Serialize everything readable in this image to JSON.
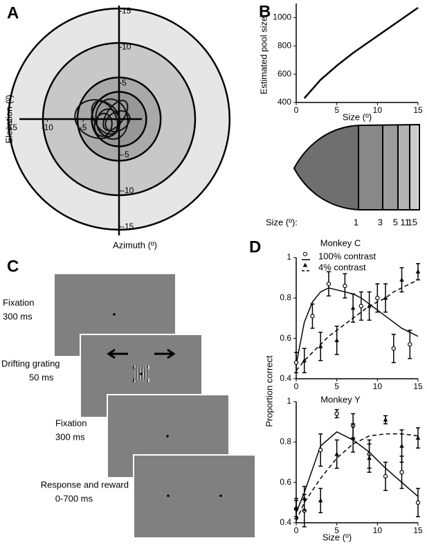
{
  "panels": [
    "A",
    "B",
    "C",
    "D"
  ],
  "chart_data": [
    {
      "type": "field",
      "xlabel": "Azimuth (º)",
      "ylabel": "Elevation (º)",
      "xlim": [
        -16,
        16
      ],
      "ylim": [
        -16,
        16
      ],
      "xticks": [
        -15,
        -10,
        -5
      ],
      "yticks": [
        -15,
        -10,
        -5,
        5,
        10,
        15
      ],
      "rings": [
        15.4,
        10.6,
        5.8,
        3.8
      ],
      "ring_colors": [
        "#e6e6e6",
        "#c8c8c8",
        "#a9a9a9",
        "#979797"
      ]
    },
    {
      "type": "line",
      "xlabel": "Size (º)",
      "ylabel": "Estimated pool size",
      "xlim": [
        0,
        15
      ],
      "ylim": [
        400,
        1100
      ],
      "xticks": [
        0,
        5,
        10,
        15
      ],
      "yticks": [
        400,
        600,
        800,
        1000
      ],
      "x": [
        1,
        3,
        5,
        7,
        9,
        11,
        13,
        15
      ],
      "values": [
        430,
        560,
        660,
        750,
        830,
        910,
        990,
        1070
      ],
      "color": "#000000"
    },
    {
      "type": "pool",
      "label": "Size (º):",
      "sizes": [
        1,
        3,
        5,
        11,
        15
      ],
      "band_colors": [
        "#6f6f6f",
        "#898989",
        "#9c9c9c",
        "#b3b3b3",
        "#cbcbcb"
      ]
    },
    {
      "type": "scatter",
      "title": "Monkey C",
      "ylabel": "Proportion correct",
      "xlim": [
        0,
        15
      ],
      "ylim": [
        0.4,
        1
      ],
      "xticks": [
        0,
        5,
        10,
        15
      ],
      "yticks": [
        0.4,
        0.6,
        0.8,
        1
      ],
      "series": [
        {
          "name": "100% contrast",
          "marker": "circle",
          "dash": false,
          "x": [
            0,
            2,
            4,
            6,
            8,
            10,
            12,
            14
          ],
          "values": [
            0.48,
            0.71,
            0.87,
            0.86,
            0.76,
            0.8,
            0.55,
            0.57
          ],
          "errors": [
            0.05,
            0.06,
            0.06,
            0.06,
            0.07,
            0.07,
            0.07,
            0.07
          ],
          "fit_x": [
            0,
            1,
            2,
            3,
            4,
            5,
            6,
            7,
            8,
            9,
            10,
            11,
            12,
            13,
            14,
            15
          ],
          "fit": [
            0.47,
            0.68,
            0.78,
            0.83,
            0.85,
            0.84,
            0.83,
            0.82,
            0.8,
            0.77,
            0.74,
            0.71,
            0.68,
            0.65,
            0.63,
            0.61
          ]
        },
        {
          "name": "4% contrast",
          "marker": "triangle",
          "dash": true,
          "x": [
            1,
            3,
            5,
            7,
            9,
            11,
            13,
            15
          ],
          "values": [
            0.49,
            0.56,
            0.59,
            0.75,
            0.76,
            0.8,
            0.89,
            0.93
          ],
          "errors": [
            0.06,
            0.07,
            0.07,
            0.07,
            0.07,
            0.07,
            0.06,
            0.04
          ],
          "fit_x": [
            0,
            1,
            2,
            3,
            4,
            5,
            6,
            7,
            8,
            9,
            10,
            11,
            12,
            13,
            14,
            15
          ],
          "fit": [
            0.44,
            0.49,
            0.53,
            0.57,
            0.61,
            0.64,
            0.67,
            0.7,
            0.73,
            0.76,
            0.78,
            0.8,
            0.83,
            0.85,
            0.87,
            0.89
          ]
        }
      ]
    },
    {
      "type": "scatter",
      "title": "Monkey Y",
      "xlabel": "Size (º)",
      "xlim": [
        0,
        15
      ],
      "ylim": [
        0.4,
        1
      ],
      "xticks": [
        0,
        5,
        10,
        15
      ],
      "yticks": [
        0.4,
        0.6,
        0.8,
        1
      ],
      "series": [
        {
          "marker": "circle",
          "dash": false,
          "x": [
            0,
            1,
            3,
            5,
            7,
            9,
            11,
            13,
            15
          ],
          "values": [
            0.47,
            0.46,
            0.76,
            0.94,
            0.88,
            0.74,
            0.63,
            0.65,
            0.5
          ],
          "errors": [
            0.05,
            0.08,
            0.08,
            0.02,
            0.06,
            0.07,
            0.07,
            0.08,
            0.07
          ],
          "fit_x": [
            0,
            1,
            3,
            5,
            7,
            9,
            11,
            13,
            15
          ],
          "fit": [
            0.45,
            0.55,
            0.78,
            0.85,
            0.81,
            0.75,
            0.67,
            0.6,
            0.53
          ]
        },
        {
          "marker": "triangle",
          "dash": true,
          "x": [
            0,
            1,
            3,
            5,
            7,
            9,
            11,
            13,
            15
          ],
          "values": [
            0.47,
            0.52,
            0.51,
            0.74,
            0.82,
            0.72,
            0.91,
            0.78,
            0.82
          ],
          "errors": [
            0.04,
            0.06,
            0.06,
            0.07,
            0.07,
            0.07,
            0.02,
            0.08,
            0.05
          ],
          "fit_x": [
            0,
            1,
            3,
            5,
            7,
            9,
            11,
            13,
            15
          ],
          "fit": [
            0.41,
            0.5,
            0.62,
            0.72,
            0.79,
            0.83,
            0.84,
            0.84,
            0.83
          ]
        }
      ]
    }
  ],
  "trial_sequence": {
    "frames": [
      {
        "name": "Fixation",
        "duration": "300 ms"
      },
      {
        "name": "Drifting grating",
        "duration": "50 ms"
      },
      {
        "name": "Fixation",
        "duration": "300 ms"
      },
      {
        "name": "Response and reward",
        "duration": "0-700 ms"
      }
    ]
  }
}
